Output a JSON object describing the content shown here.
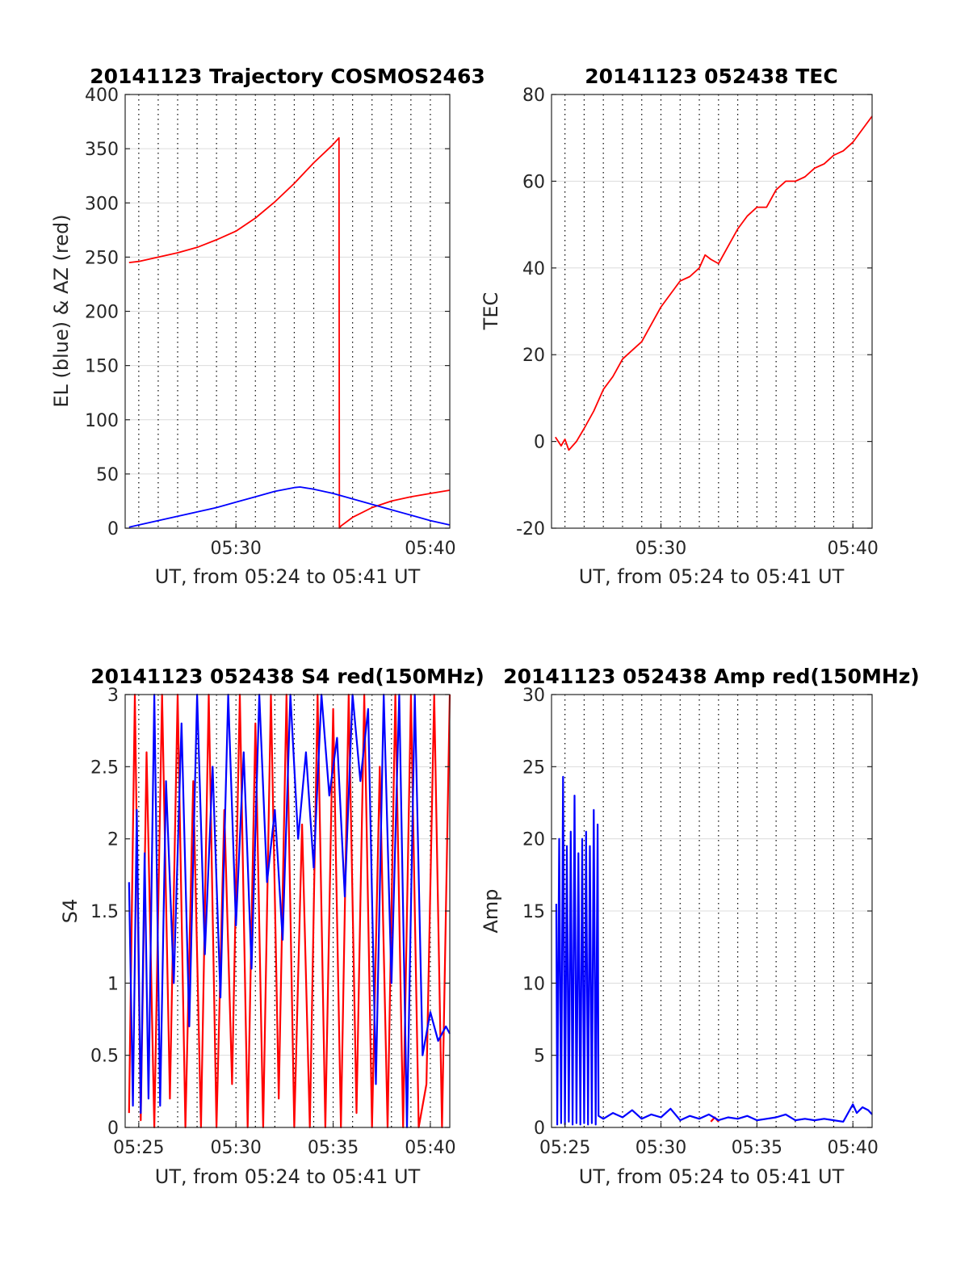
{
  "colors": {
    "el": "#0000ff",
    "az": "#ff0000",
    "grid": "#000000",
    "axis": "#262626"
  },
  "chart_data": [
    {
      "type": "line",
      "title": "20141123 Trajectory COSMOS2463",
      "xlabel": "UT, from 05:24 to 05:41 UT",
      "ylabel": "EL (blue) & AZ (red)",
      "xlim_minutes": [
        24.3,
        41.0
      ],
      "ylim": [
        0,
        400
      ],
      "xticks": [
        {
          "v": 30,
          "label": "05:30"
        },
        {
          "v": 40,
          "label": "05:40"
        }
      ],
      "yticks": [
        {
          "v": 0,
          "label": "0"
        },
        {
          "v": 50,
          "label": "50"
        },
        {
          "v": 100,
          "label": "100"
        },
        {
          "v": 150,
          "label": "150"
        },
        {
          "v": 200,
          "label": "200"
        },
        {
          "v": 250,
          "label": "250"
        },
        {
          "v": 300,
          "label": "300"
        },
        {
          "v": 350,
          "label": "350"
        },
        {
          "v": 400,
          "label": "400"
        }
      ],
      "minor_grid_minutes": [
        25,
        26,
        27,
        28,
        29,
        30,
        31,
        32,
        33,
        34,
        35,
        36,
        37,
        38,
        39,
        40
      ],
      "series": [
        {
          "color": "red",
          "x": [
            24.5,
            25.0,
            26.0,
            27.0,
            28.0,
            29.0,
            30.0,
            31.0,
            32.0,
            33.0,
            34.0,
            35.0,
            35.3,
            35.32,
            35.4,
            36.0,
            37.0,
            38.0,
            39.0,
            40.0,
            41.0
          ],
          "y": [
            245,
            246,
            250,
            254,
            259,
            266,
            274,
            286,
            301,
            318,
            337,
            354,
            360,
            0,
            2,
            10,
            19,
            25,
            29,
            32,
            35
          ]
        },
        {
          "color": "blue",
          "x": [
            24.5,
            25.0,
            26.0,
            27.0,
            28.0,
            29.0,
            30.0,
            31.0,
            32.0,
            33.0,
            33.3,
            34.0,
            35.0,
            36.0,
            37.0,
            38.0,
            39.0,
            40.0,
            41.0
          ],
          "y": [
            1,
            3,
            7,
            11,
            15,
            19,
            24,
            29,
            34,
            37.5,
            38,
            36,
            32,
            27,
            22,
            17,
            12,
            7,
            3
          ]
        }
      ]
    },
    {
      "type": "line",
      "title": "20141123 052438 TEC",
      "xlabel": "UT, from 05:24 to 05:41 UT",
      "ylabel": "TEC",
      "xlim_minutes": [
        24.3,
        41.0
      ],
      "ylim": [
        -20,
        80
      ],
      "xticks": [
        {
          "v": 30,
          "label": "05:30"
        },
        {
          "v": 40,
          "label": "05:40"
        }
      ],
      "yticks": [
        {
          "v": -20,
          "label": "-20"
        },
        {
          "v": 0,
          "label": "0"
        },
        {
          "v": 20,
          "label": "20"
        },
        {
          "v": 40,
          "label": "40"
        },
        {
          "v": 60,
          "label": "60"
        },
        {
          "v": 80,
          "label": "80"
        }
      ],
      "minor_grid_minutes": [
        25,
        26,
        27,
        28,
        29,
        30,
        31,
        32,
        33,
        34,
        35,
        36,
        37,
        38,
        39,
        40
      ],
      "series": [
        {
          "color": "red",
          "x": [
            24.5,
            24.8,
            25.0,
            25.2,
            25.6,
            26.0,
            26.5,
            27.0,
            27.5,
            28.0,
            28.5,
            29.0,
            29.5,
            30.0,
            30.5,
            31.0,
            31.5,
            32.0,
            32.3,
            32.6,
            33.0,
            33.5,
            34.0,
            34.5,
            35.0,
            35.5,
            36.0,
            36.5,
            37.0,
            37.5,
            38.0,
            38.5,
            39.0,
            39.5,
            40.0,
            40.5,
            41.0
          ],
          "y": [
            1,
            -1,
            0.5,
            -2,
            0,
            3,
            7,
            12,
            15,
            19,
            21,
            23,
            27,
            31,
            34,
            37,
            38,
            40,
            43,
            42,
            41,
            45,
            49,
            52,
            54,
            54,
            58,
            60,
            60,
            61,
            63,
            64,
            66,
            67,
            69,
            72,
            75
          ]
        }
      ]
    },
    {
      "type": "line",
      "title": "20141123 052438 S4 red(150MHz)",
      "xlabel": "UT, from 05:24 to 05:41 UT",
      "ylabel": "S4",
      "xlim_minutes": [
        24.3,
        41.0
      ],
      "ylim": [
        0,
        3
      ],
      "xticks": [
        {
          "v": 25,
          "label": "05:25"
        },
        {
          "v": 30,
          "label": "05:30"
        },
        {
          "v": 35,
          "label": "05:35"
        },
        {
          "v": 40,
          "label": "05:40"
        }
      ],
      "yticks": [
        {
          "v": 0,
          "label": "0"
        },
        {
          "v": 0.5,
          "label": "0.5"
        },
        {
          "v": 1,
          "label": "1"
        },
        {
          "v": 1.5,
          "label": "1.5"
        },
        {
          "v": 2,
          "label": "2"
        },
        {
          "v": 2.5,
          "label": "2.5"
        },
        {
          "v": 3,
          "label": "3"
        }
      ],
      "minor_grid_minutes": [
        25,
        26,
        27,
        28,
        29,
        30,
        31,
        32,
        33,
        34,
        35,
        36,
        37,
        38,
        39,
        40
      ],
      "series": [
        {
          "color": "red",
          "x": [
            24.5,
            24.8,
            25.1,
            25.4,
            25.8,
            26.2,
            26.6,
            27.0,
            27.4,
            27.8,
            28.2,
            28.6,
            29.0,
            29.4,
            29.8,
            30.2,
            30.6,
            31.0,
            31.4,
            31.8,
            32.2,
            32.6,
            33.0,
            33.4,
            33.8,
            34.2,
            34.6,
            35.0,
            35.4,
            35.8,
            36.2,
            36.6,
            37.0,
            37.4,
            37.8,
            38.2,
            38.6,
            39.0,
            39.4,
            39.8,
            40.2,
            40.6,
            41.0
          ],
          "y": [
            0.1,
            3.0,
            0.05,
            2.6,
            0.0,
            3.0,
            0.2,
            3.0,
            0.0,
            2.4,
            0.0,
            3.0,
            0.0,
            2.2,
            0.3,
            3.0,
            0.0,
            2.8,
            0.0,
            3.0,
            0.2,
            3.0,
            0.0,
            2.1,
            0.0,
            3.0,
            0.0,
            2.9,
            0.0,
            3.0,
            0.1,
            3.0,
            0.0,
            2.5,
            0.0,
            3.0,
            0.0,
            3.0,
            0.0,
            0.3,
            3.0,
            0.0,
            3.0
          ]
        },
        {
          "color": "blue",
          "x": [
            24.5,
            24.7,
            24.9,
            25.1,
            25.3,
            25.5,
            25.8,
            26.1,
            26.4,
            26.8,
            27.2,
            27.6,
            28.0,
            28.4,
            28.8,
            29.2,
            29.6,
            30.0,
            30.4,
            30.8,
            31.2,
            31.6,
            32.0,
            32.4,
            32.8,
            33.2,
            33.6,
            34.0,
            34.4,
            34.8,
            35.2,
            35.6,
            36.0,
            36.4,
            36.8,
            37.2,
            37.6,
            38.0,
            38.4,
            38.8,
            39.2,
            39.6,
            40.0,
            40.4,
            40.8,
            41.0
          ],
          "y": [
            1.7,
            0.15,
            2.2,
            0.1,
            1.9,
            0.2,
            3.0,
            0.15,
            2.4,
            1.0,
            2.8,
            0.7,
            3.0,
            1.2,
            2.5,
            0.9,
            3.0,
            1.4,
            2.6,
            1.1,
            3.0,
            1.7,
            2.2,
            1.3,
            3.0,
            2.0,
            2.6,
            1.8,
            3.0,
            2.3,
            2.7,
            1.6,
            3.0,
            2.4,
            2.9,
            0.3,
            3.0,
            1.0,
            3.0,
            0.0,
            3.0,
            0.5,
            0.8,
            0.6,
            0.7,
            0.65
          ]
        }
      ]
    },
    {
      "type": "line",
      "title": "20141123 052438 Amp red(150MHz)",
      "xlabel": "UT, from 05:24 to 05:41 UT",
      "ylabel": "Amp",
      "xlim_minutes": [
        24.3,
        41.0
      ],
      "ylim": [
        0,
        30
      ],
      "xticks": [
        {
          "v": 25,
          "label": "05:25"
        },
        {
          "v": 30,
          "label": "05:30"
        },
        {
          "v": 35,
          "label": "05:35"
        },
        {
          "v": 40,
          "label": "05:40"
        }
      ],
      "yticks": [
        {
          "v": 0,
          "label": "0"
        },
        {
          "v": 5,
          "label": "5"
        },
        {
          "v": 10,
          "label": "10"
        },
        {
          "v": 15,
          "label": "15"
        },
        {
          "v": 20,
          "label": "20"
        },
        {
          "v": 25,
          "label": "25"
        },
        {
          "v": 30,
          "label": "30"
        }
      ],
      "minor_grid_minutes": [
        25,
        26,
        27,
        28,
        29,
        30,
        31,
        32,
        33,
        34,
        35,
        36,
        37,
        38,
        39,
        40
      ],
      "series": [
        {
          "color": "red",
          "x": [
            32.6,
            32.8,
            33.0
          ],
          "y": [
            0.4,
            0.7,
            0.4
          ]
        },
        {
          "color": "blue",
          "x": [
            24.55,
            24.6,
            24.7,
            24.8,
            24.9,
            25.0,
            25.1,
            25.2,
            25.3,
            25.4,
            25.5,
            25.6,
            25.7,
            25.8,
            25.9,
            26.0,
            26.1,
            26.2,
            26.3,
            26.4,
            26.5,
            26.6,
            26.7,
            26.75,
            27.0,
            27.5,
            28.0,
            28.5,
            29.0,
            29.5,
            30.0,
            30.5,
            31.0,
            31.5,
            32.0,
            32.5,
            33.0,
            33.5,
            34.0,
            34.5,
            35.0,
            35.5,
            36.0,
            36.5,
            37.0,
            37.5,
            38.0,
            38.5,
            39.0,
            39.5,
            40.0,
            40.2,
            40.5,
            40.8,
            41.0
          ],
          "y": [
            15.5,
            0.2,
            20.0,
            0.3,
            24.3,
            0.2,
            19.5,
            0.4,
            20.5,
            0.2,
            23.0,
            0.3,
            19.0,
            0.2,
            20.0,
            0.3,
            20.5,
            0.2,
            19.5,
            0.3,
            22.0,
            0.2,
            21.0,
            0.8,
            0.6,
            1.0,
            0.7,
            1.2,
            0.6,
            0.9,
            0.7,
            1.3,
            0.5,
            0.8,
            0.6,
            0.9,
            0.5,
            0.7,
            0.6,
            0.8,
            0.5,
            0.6,
            0.7,
            0.9,
            0.5,
            0.6,
            0.5,
            0.6,
            0.5,
            0.4,
            1.6,
            1.0,
            1.4,
            1.2,
            0.9
          ]
        }
      ]
    }
  ]
}
